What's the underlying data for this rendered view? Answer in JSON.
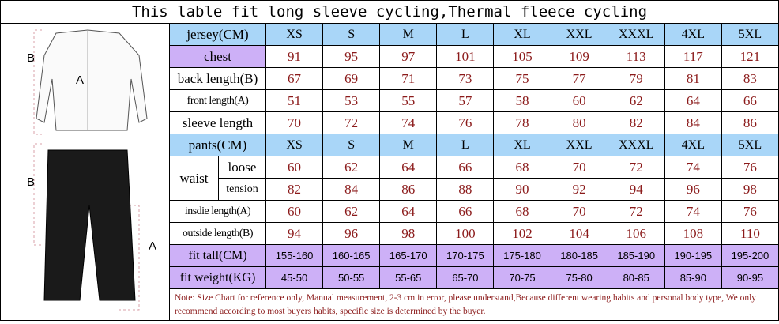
{
  "title": "This lable fit long sleeve cycling,Thermal fleece cycling",
  "figures": {
    "jersey_labels": [
      "B",
      "A"
    ],
    "pants_labels": [
      "B",
      "A"
    ]
  },
  "jersey": {
    "header": "jersey(CM)",
    "sizes": [
      "XS",
      "S",
      "M",
      "L",
      "XL",
      "XXL",
      "XXXL",
      "4XL",
      "5XL"
    ],
    "rows": [
      {
        "label": "chest",
        "values": [
          91,
          95,
          97,
          101,
          105,
          109,
          113,
          117,
          121
        ]
      },
      {
        "label": "back length(B)",
        "values": [
          67,
          69,
          71,
          73,
          75,
          77,
          79,
          81,
          83
        ]
      },
      {
        "label": "front length(A)",
        "values": [
          51,
          53,
          55,
          57,
          58,
          60,
          62,
          64,
          66
        ]
      },
      {
        "label": "sleeve length",
        "values": [
          70,
          72,
          74,
          76,
          78,
          80,
          82,
          84,
          86
        ]
      }
    ]
  },
  "pants": {
    "header": "pants(CM)",
    "sizes": [
      "XS",
      "S",
      "M",
      "L",
      "XL",
      "XXL",
      "XXXL",
      "4XL",
      "5XL"
    ],
    "waist": {
      "label": "waist",
      "rows": [
        {
          "label": "loose",
          "values": [
            60,
            62,
            64,
            66,
            68,
            70,
            72,
            74,
            76
          ]
        },
        {
          "label": "tension",
          "values": [
            82,
            84,
            86,
            88,
            90,
            92,
            94,
            96,
            98
          ]
        }
      ]
    },
    "rows": [
      {
        "label": "insdie length(A)",
        "values": [
          60,
          62,
          64,
          66,
          68,
          70,
          72,
          74,
          76
        ]
      },
      {
        "label": "outside length(B)",
        "values": [
          94,
          96,
          98,
          100,
          102,
          104,
          106,
          108,
          110
        ]
      }
    ]
  },
  "fit": [
    {
      "label": "fit tall(CM)",
      "values": [
        "155-160",
        "160-165",
        "165-170",
        "170-175",
        "175-180",
        "180-185",
        "185-190",
        "190-195",
        "195-200"
      ]
    },
    {
      "label": "fit weight(KG)",
      "values": [
        "45-50",
        "50-55",
        "55-65",
        "65-70",
        "70-75",
        "75-80",
        "80-85",
        "85-90",
        "90-95"
      ]
    }
  ],
  "note": "Note: Size Chart for reference only, Manual measurement, 2-3 cm in error, please understand,Because different wearing habits and personal body type, We only recommend according to most buyers habits, specific size  is determined by the buyer."
}
